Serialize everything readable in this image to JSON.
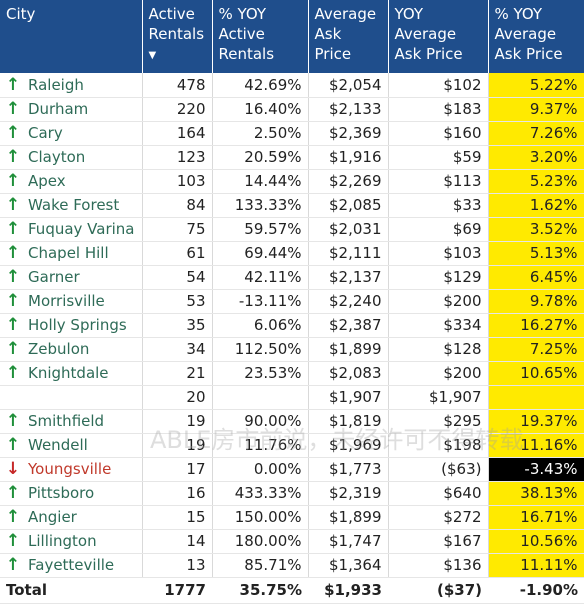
{
  "headers": [
    "City",
    "Active Rentals",
    "% YOY Active Rentals",
    "Average Ask Price",
    "YOY Average Ask Price",
    "% YOY Average Ask Price"
  ],
  "sort_indicator": "▼",
  "rows": [
    {
      "city": "Raleigh",
      "rentals": "478",
      "pct_rentals": "42.69%",
      "avg": "$2,054",
      "yoy_avg": "$102",
      "pct_avg": "5.22%",
      "arrow": "up"
    },
    {
      "city": "Durham",
      "rentals": "220",
      "pct_rentals": "16.40%",
      "avg": "$2,133",
      "yoy_avg": "$183",
      "pct_avg": "9.37%",
      "arrow": "up"
    },
    {
      "city": "Cary",
      "rentals": "164",
      "pct_rentals": "2.50%",
      "avg": "$2,369",
      "yoy_avg": "$160",
      "pct_avg": "7.26%",
      "arrow": "up"
    },
    {
      "city": "Clayton",
      "rentals": "123",
      "pct_rentals": "20.59%",
      "avg": "$1,916",
      "yoy_avg": "$59",
      "pct_avg": "3.20%",
      "arrow": "up"
    },
    {
      "city": "Apex",
      "rentals": "103",
      "pct_rentals": "14.44%",
      "avg": "$2,269",
      "yoy_avg": "$113",
      "pct_avg": "5.23%",
      "arrow": "up"
    },
    {
      "city": "Wake Forest",
      "rentals": "84",
      "pct_rentals": "133.33%",
      "avg": "$2,085",
      "yoy_avg": "$33",
      "pct_avg": "1.62%",
      "arrow": "up"
    },
    {
      "city": "Fuquay Varina",
      "rentals": "75",
      "pct_rentals": "59.57%",
      "avg": "$2,031",
      "yoy_avg": "$69",
      "pct_avg": "3.52%",
      "arrow": "up"
    },
    {
      "city": "Chapel Hill",
      "rentals": "61",
      "pct_rentals": "69.44%",
      "avg": "$2,111",
      "yoy_avg": "$103",
      "pct_avg": "5.13%",
      "arrow": "up"
    },
    {
      "city": "Garner",
      "rentals": "54",
      "pct_rentals": "42.11%",
      "avg": "$2,137",
      "yoy_avg": "$129",
      "pct_avg": "6.45%",
      "arrow": "up"
    },
    {
      "city": "Morrisville",
      "rentals": "53",
      "pct_rentals": "-13.11%",
      "avg": "$2,240",
      "yoy_avg": "$200",
      "pct_avg": "9.78%",
      "arrow": "up"
    },
    {
      "city": "Holly Springs",
      "rentals": "35",
      "pct_rentals": "6.06%",
      "avg": "$2,387",
      "yoy_avg": "$334",
      "pct_avg": "16.27%",
      "arrow": "up"
    },
    {
      "city": "Zebulon",
      "rentals": "34",
      "pct_rentals": "112.50%",
      "avg": "$1,899",
      "yoy_avg": "$128",
      "pct_avg": "7.25%",
      "arrow": "up"
    },
    {
      "city": "Knightdale",
      "rentals": "21",
      "pct_rentals": "23.53%",
      "avg": "$2,083",
      "yoy_avg": "$200",
      "pct_avg": "10.65%",
      "arrow": "up"
    },
    {
      "city": "",
      "rentals": "20",
      "pct_rentals": "",
      "avg": "$1,907",
      "yoy_avg": "$1,907",
      "pct_avg": "",
      "arrow": "none"
    },
    {
      "city": "Smithfield",
      "rentals": "19",
      "pct_rentals": "90.00%",
      "avg": "$1,819",
      "yoy_avg": "$295",
      "pct_avg": "19.37%",
      "arrow": "up"
    },
    {
      "city": "Wendell",
      "rentals": "19",
      "pct_rentals": "11.76%",
      "avg": "$1,969",
      "yoy_avg": "$198",
      "pct_avg": "11.16%",
      "arrow": "up"
    },
    {
      "city": "Youngsville",
      "rentals": "17",
      "pct_rentals": "0.00%",
      "avg": "$1,773",
      "yoy_avg": "($63)",
      "pct_avg": "-3.43%",
      "arrow": "down"
    },
    {
      "city": "Pittsboro",
      "rentals": "16",
      "pct_rentals": "433.33%",
      "avg": "$2,319",
      "yoy_avg": "$640",
      "pct_avg": "38.13%",
      "arrow": "up"
    },
    {
      "city": "Angier",
      "rentals": "15",
      "pct_rentals": "150.00%",
      "avg": "$1,899",
      "yoy_avg": "$272",
      "pct_avg": "16.71%",
      "arrow": "up"
    },
    {
      "city": "Lillington",
      "rentals": "14",
      "pct_rentals": "180.00%",
      "avg": "$1,747",
      "yoy_avg": "$167",
      "pct_avg": "10.56%",
      "arrow": "up"
    },
    {
      "city": "Fayetteville",
      "rentals": "13",
      "pct_rentals": "85.71%",
      "avg": "$1,364",
      "yoy_avg": "$136",
      "pct_avg": "11.11%",
      "arrow": "up"
    }
  ],
  "total": {
    "label": "Total",
    "rentals": "1777",
    "pct_rentals": "35.75%",
    "avg": "$1,933",
    "yoy_avg": "($37)",
    "pct_avg": "-1.90%"
  },
  "watermark": "ABLE房市前说，未经许可不得转载",
  "colors": {
    "header_bg": "#1f4e8c",
    "highlight": "#ffea00",
    "negative_bg": "#000000",
    "up_arrow": "#1f8f3a",
    "down_arrow": "#c62828"
  }
}
